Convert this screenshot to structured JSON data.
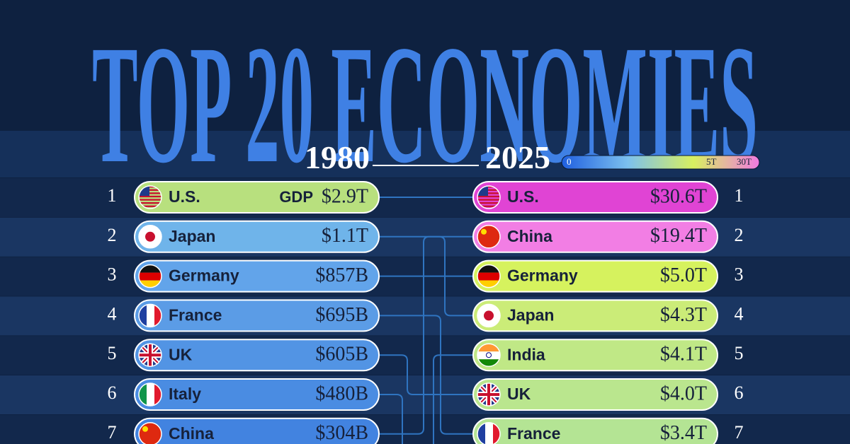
{
  "header": {
    "title": "TOP 20 ECONOMIES",
    "year_start": "1980",
    "year_end": "2025"
  },
  "legend": {
    "min_label": "0",
    "mid_label": "5T",
    "max_label": "30T",
    "colors": [
      "#1f5fe0",
      "#7cc0ee",
      "#d8f060",
      "#f07ae0"
    ]
  },
  "gdp_label": "GDP",
  "rows_1980": [
    {
      "rank": 1,
      "country": "U.S.",
      "value": "$2.9T",
      "color": "#b8e07e"
    },
    {
      "rank": 2,
      "country": "Japan",
      "value": "$1.1T",
      "color": "#6fb4ea"
    },
    {
      "rank": 3,
      "country": "Germany",
      "value": "$857B",
      "color": "#62a4ea"
    },
    {
      "rank": 4,
      "country": "France",
      "value": "$695B",
      "color": "#5b9ce6"
    },
    {
      "rank": 5,
      "country": "UK",
      "value": "$605B",
      "color": "#5294e4"
    },
    {
      "rank": 6,
      "country": "Italy",
      "value": "$480B",
      "color": "#4a8ce2"
    },
    {
      "rank": 7,
      "country": "China",
      "value": "$304B",
      "color": "#4283e0"
    }
  ],
  "rows_2025": [
    {
      "rank": 1,
      "country": "U.S.",
      "value": "$30.6T",
      "color": "#e044d4"
    },
    {
      "rank": 2,
      "country": "China",
      "value": "$19.4T",
      "color": "#f27ee4"
    },
    {
      "rank": 3,
      "country": "Germany",
      "value": "$5.0T",
      "color": "#d6f25e"
    },
    {
      "rank": 4,
      "country": "Japan",
      "value": "$4.3T",
      "color": "#cbec78"
    },
    {
      "rank": 5,
      "country": "India",
      "value": "$4.1T",
      "color": "#c0e886"
    },
    {
      "rank": 6,
      "country": "UK",
      "value": "$4.0T",
      "color": "#bae68e"
    },
    {
      "rank": 7,
      "country": "France",
      "value": "$3.4T",
      "color": "#b4e494"
    }
  ]
}
